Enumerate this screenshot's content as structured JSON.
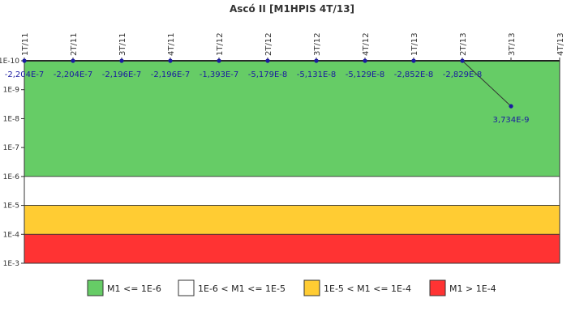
{
  "chart_data": {
    "type": "line",
    "title": "Ascó II [M1HPIS 4T/13]",
    "xlabel": "",
    "ylabel": "",
    "y_scale": "log",
    "y_axis_reversed": true,
    "ylim": [
      1e-10,
      0.001
    ],
    "y_ticks": [
      1e-10,
      1e-09,
      1e-08,
      1e-07,
      1e-06,
      1e-05,
      0.0001,
      0.001
    ],
    "y_tick_labels": [
      "1E-10",
      "1E-9",
      "1E-8",
      "1E-7",
      "1E-6",
      "1E-5",
      "1E-4",
      "1E-3"
    ],
    "categories": [
      "1T/11",
      "2T/11",
      "3T/11",
      "4T/11",
      "1T/12",
      "2T/12",
      "3T/12",
      "4T/12",
      "1T/13",
      "2T/13",
      "3T/13",
      "4T/13"
    ],
    "series": [
      {
        "name": "M1",
        "color": "#1a1aa0",
        "values": [
          -2.204e-07,
          -2.204e-07,
          -2.196e-07,
          -2.196e-07,
          -1.393e-07,
          -5.179e-08,
          -5.131e-08,
          -5.129e-08,
          -2.852e-08,
          -2.829e-08,
          3.734e-09,
          null
        ],
        "labels": [
          "-2,204E-7",
          "-2,204E-7",
          "-2,196E-7",
          "-2,196E-7",
          "-1,393E-7",
          "-5,179E-8",
          "-5,131E-8",
          "-5,129E-8",
          "-2,852E-8",
          "-2,829E-8",
          "3,734E-9",
          ""
        ]
      }
    ],
    "bands": [
      {
        "from": 1e-10,
        "to": 1e-06,
        "color": "#66cc66",
        "label": "M1 <= 1E-6"
      },
      {
        "from": 1e-06,
        "to": 1e-05,
        "color": "#ffffff",
        "label": "1E-6 < M1 <= 1E-5"
      },
      {
        "from": 1e-05,
        "to": 0.0001,
        "color": "#ffcc33",
        "label": "1E-5 < M1 <= 1E-4"
      },
      {
        "from": 0.0001,
        "to": 0.001,
        "color": "#ff3333",
        "label": "M1 > 1E-4"
      }
    ],
    "legend_position": "bottom",
    "grid": false
  }
}
